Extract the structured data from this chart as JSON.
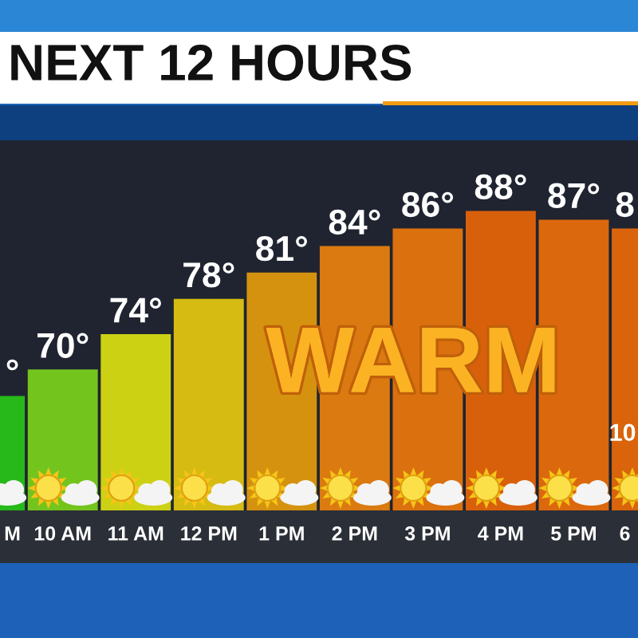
{
  "chart_data": {
    "type": "bar",
    "title": "NEXT 12 HOURS",
    "categories": [
      "M",
      "10 AM",
      "11 AM",
      "12 PM",
      "1 PM",
      "2 PM",
      "3 PM",
      "4 PM",
      "5 PM",
      "6"
    ],
    "values": [
      67,
      70,
      74,
      78,
      81,
      84,
      86,
      88,
      87,
      86
    ],
    "colors": [
      "#27b81a",
      "#74c41e",
      "#ccd114",
      "#d6bb12",
      "#d5920f",
      "#da7a10",
      "#db700e",
      "#d9600b",
      "#dc680d",
      "#d9640c"
    ],
    "value_labels": [
      "°",
      "70°",
      "74°",
      "78°",
      "81°",
      "84°",
      "86°",
      "88°",
      "87°",
      null
    ],
    "ylim": [
      54,
      96
    ],
    "tick_labels": "x",
    "annotations": [
      "WARM",
      "10",
      "8"
    ]
  }
}
